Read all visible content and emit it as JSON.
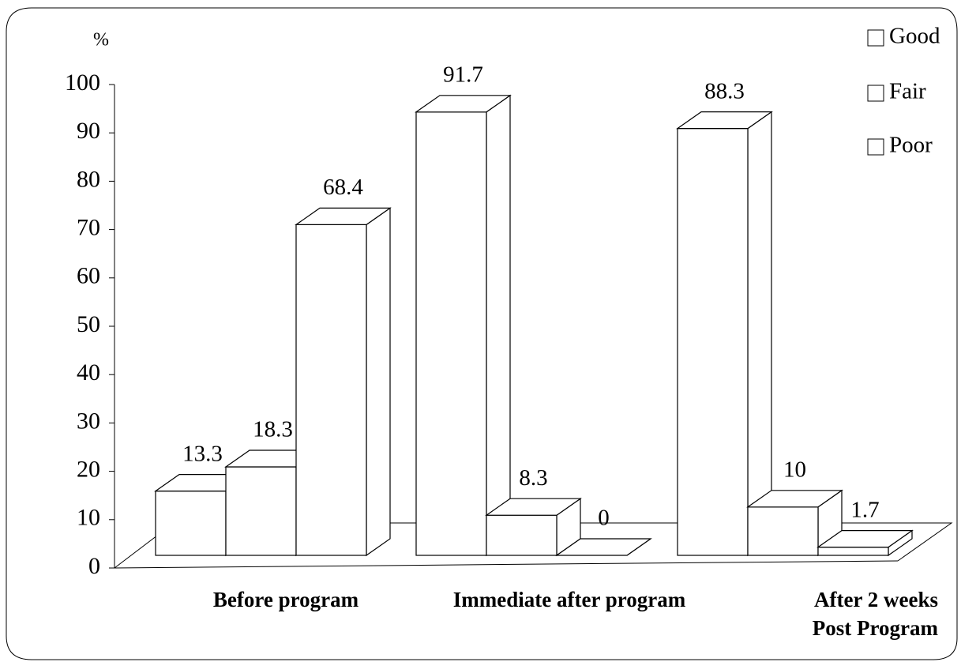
{
  "chart_data": {
    "type": "bar3d",
    "y_label": "%",
    "categories": [
      "Before program",
      "Immediate after program",
      "After 2 weeks\nPost Program"
    ],
    "series": [
      {
        "name": "Good",
        "color": "#ffffff",
        "values": [
          13.3,
          91.7,
          88.3
        ]
      },
      {
        "name": "Fair",
        "color": "#ffffff",
        "values": [
          18.3,
          8.3,
          10
        ]
      },
      {
        "name": "Poor",
        "color": "#ffffff",
        "values": [
          68.4,
          0,
          1.7
        ]
      }
    ],
    "ylim": [
      0,
      100
    ],
    "yticks": [
      0,
      10,
      20,
      30,
      40,
      50,
      60,
      70,
      80,
      90,
      100
    ],
    "legend": "top-right"
  }
}
